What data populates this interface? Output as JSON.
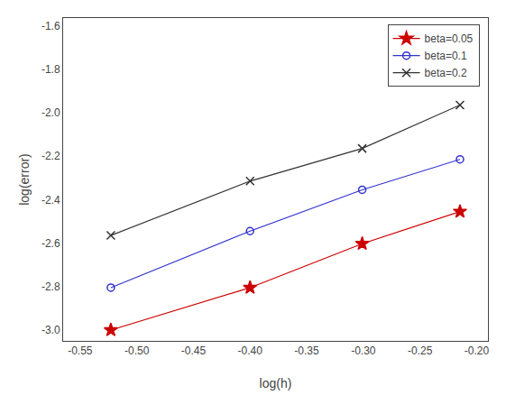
{
  "chart_data": {
    "type": "line",
    "xlabel": "log(h)",
    "ylabel": "log(error)",
    "x": [
      -0.5229,
      -0.4,
      -0.301,
      -0.2147
    ],
    "series": [
      {
        "name": "beta=0.05",
        "color": "#cc0000",
        "marker": "star",
        "values": [
          -3.0,
          -2.805,
          -2.603,
          -2.455
        ]
      },
      {
        "name": "beta=0.1",
        "color": "#3333cc",
        "marker": "circle",
        "values": [
          -2.805,
          -2.545,
          -2.355,
          -2.215
        ]
      },
      {
        "name": "beta=0.2",
        "color": "#333333",
        "marker": "x",
        "values": [
          -2.565,
          -2.315,
          -2.165,
          -1.965
        ]
      }
    ],
    "xlim": [
      -0.565,
      -0.19
    ],
    "ylim": [
      -3.05,
      -1.565
    ],
    "xticks": [
      -0.55,
      {
        "value": -0.5,
        "label": "-0.50"
      },
      -0.45,
      {
        "value": -0.4,
        "label": "-0.40"
      },
      -0.35,
      {
        "value": -0.3,
        "label": "-0.30"
      },
      -0.25,
      {
        "value": -0.2,
        "label": "-0.20"
      }
    ],
    "yticks": [
      {
        "value": -3.0,
        "label": "-3.0"
      },
      -2.8,
      -2.6,
      -2.4,
      -2.2,
      {
        "value": -2.0,
        "label": "-2.0"
      },
      -1.8,
      -1.6
    ],
    "grid": false,
    "legend": "upper right"
  }
}
